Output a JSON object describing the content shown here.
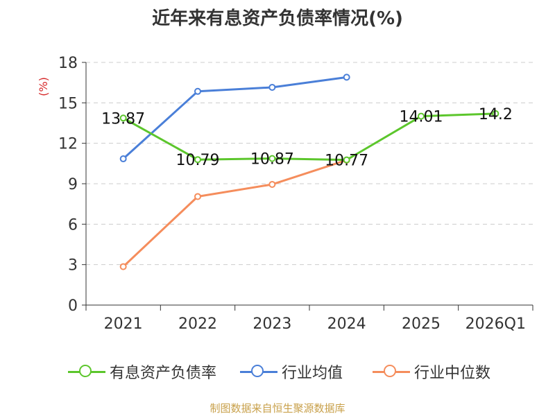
{
  "title": "近年来有息资产负债率情况(%)",
  "source": "制图数据来自恒生聚源数据库",
  "chart_data": {
    "type": "line",
    "categories": [
      "2021",
      "2022",
      "2023",
      "2024",
      "2025",
      "2026Q1"
    ],
    "ylabel": "(%)",
    "ylim": [
      0,
      18
    ],
    "yticks": [
      0,
      3,
      6,
      9,
      12,
      15,
      18
    ],
    "grid": "horizontal-dashed",
    "legend_position": "bottom",
    "series": [
      {
        "name": "有息资产负债率",
        "color": "#5cc62c",
        "show_labels": true,
        "values": [
          13.87,
          10.79,
          10.87,
          10.77,
          14.01,
          14.2
        ],
        "labels": [
          "13.87",
          "10.79",
          "10.87",
          "10.77",
          "14.01",
          "14.2"
        ]
      },
      {
        "name": "行业均值",
        "color": "#4a7fd8",
        "show_labels": false,
        "values": [
          10.85,
          15.85,
          16.15,
          16.9,
          null,
          null
        ]
      },
      {
        "name": "行业中位数",
        "color": "#f58d5c",
        "show_labels": false,
        "values": [
          2.85,
          8.05,
          8.95,
          10.75,
          null,
          null
        ]
      }
    ]
  }
}
